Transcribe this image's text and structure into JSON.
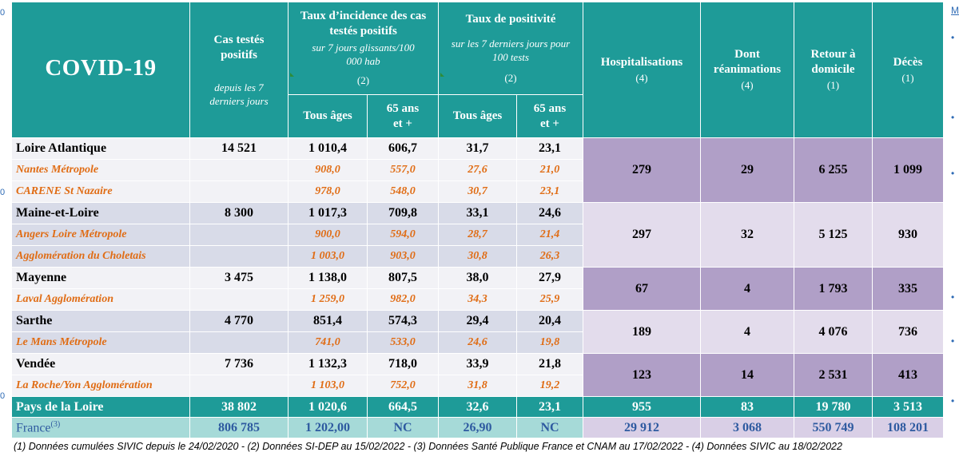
{
  "header": {
    "title": "COVID-19",
    "cas_label": "Cas testés positifs",
    "cas_sub": "depuis les 7 derniers jours",
    "incidence_label": "Taux d’incidence des cas testés positifs",
    "incidence_sub": "sur 7 jours glissants/100 000 hab",
    "incidence_note": "(2)",
    "positivite_label": "Taux de positivité",
    "positivite_sub": "sur les 7 derniers jours pour 100 tests",
    "positivite_note": "(2)",
    "tous_ages": "Tous âges",
    "ans65": "65 ans et +",
    "hosp_label": "Hospitalisations",
    "hosp_note": "(4)",
    "rea_label": "Dont réanimations",
    "rea_note": "(4)",
    "domicile_label": "Retour à domicile",
    "domicile_note": "(1)",
    "deces_label": "Décès",
    "deces_note": "(1)"
  },
  "groups": [
    {
      "name": "Loire Atlantique",
      "cas": "14 521",
      "inc_all": "1 010,4",
      "inc_65": "606,7",
      "pos_all": "31,7",
      "pos_65": "23,1",
      "hosp": "279",
      "rea": "29",
      "dom": "6 255",
      "deces": "1 099",
      "subs": [
        {
          "name": "Nantes Métropole",
          "inc_all": "908,0",
          "inc_65": "557,0",
          "pos_all": "27,6",
          "pos_65": "21,0"
        },
        {
          "name": "CARENE St Nazaire",
          "inc_all": "978,0",
          "inc_65": "548,0",
          "pos_all": "30,7",
          "pos_65": "23,1"
        }
      ]
    },
    {
      "name": "Maine-et-Loire",
      "cas": "8 300",
      "inc_all": "1 017,3",
      "inc_65": "709,8",
      "pos_all": "33,1",
      "pos_65": "24,6",
      "hosp": "297",
      "rea": "32",
      "dom": "5 125",
      "deces": "930",
      "subs": [
        {
          "name": "Angers Loire Métropole",
          "inc_all": "900,0",
          "inc_65": "594,0",
          "pos_all": "28,7",
          "pos_65": "21,4"
        },
        {
          "name": "Agglomération du Choletais",
          "inc_all": "1 003,0",
          "inc_65": "903,0",
          "pos_all": "30,8",
          "pos_65": "26,3"
        }
      ]
    },
    {
      "name": "Mayenne",
      "cas": "3 475",
      "inc_all": "1 138,0",
      "inc_65": "807,5",
      "pos_all": "38,0",
      "pos_65": "27,9",
      "hosp": "67",
      "rea": "4",
      "dom": "1 793",
      "deces": "335",
      "subs": [
        {
          "name": "Laval Agglomération",
          "inc_all": "1 259,0",
          "inc_65": "982,0",
          "pos_all": "34,3",
          "pos_65": "25,9"
        }
      ]
    },
    {
      "name": "Sarthe",
      "cas": "4 770",
      "inc_all": "851,4",
      "inc_65": "574,3",
      "pos_all": "29,4",
      "pos_65": "20,4",
      "hosp": "189",
      "rea": "4",
      "dom": "4 076",
      "deces": "736",
      "subs": [
        {
          "name": "Le Mans Métropole",
          "inc_all": "741,0",
          "inc_65": "533,0",
          "pos_all": "24,6",
          "pos_65": "19,8"
        }
      ]
    },
    {
      "name": "Vendée",
      "cas": "7 736",
      "inc_all": "1 132,3",
      "inc_65": "718,0",
      "pos_all": "33,9",
      "pos_65": "21,8",
      "hosp": "123",
      "rea": "14",
      "dom": "2 531",
      "deces": "413",
      "subs": [
        {
          "name": "La Roche/Yon Agglomération",
          "inc_all": "1 103,0",
          "inc_65": "752,0",
          "pos_all": "31,8",
          "pos_65": "19,2"
        }
      ]
    }
  ],
  "region": {
    "name": "Pays de la Loire",
    "cas": "38 802",
    "inc_all": "1 020,6",
    "inc_65": "664,5",
    "pos_all": "32,6",
    "pos_65": "23,1",
    "hosp": "955",
    "rea": "83",
    "dom": "19 780",
    "deces": "3 513"
  },
  "france": {
    "name": "France",
    "sup": "(3)",
    "cas": "806 785",
    "inc_all": "1 202,00",
    "inc_65": "NC",
    "pos_all": "26,90",
    "pos_65": "NC",
    "hosp": "29 912",
    "rea": "3 068",
    "dom": "550 749",
    "deces": "108 201"
  },
  "footnote": "(1) Données cumulées SIVIC depuis le 24/02/2020 - (2) Données SI-DEP  au 15/02/2022 - (3) Données Santé Publique France et CNAM au  17/02/2022 - (4) Données SIVIC au 18/02/2022",
  "colors": {
    "header_teal": "#1e9b98",
    "france_teal_light": "#a6dad8",
    "purple": "#b09fc7",
    "orange_text": "#e06c14"
  }
}
